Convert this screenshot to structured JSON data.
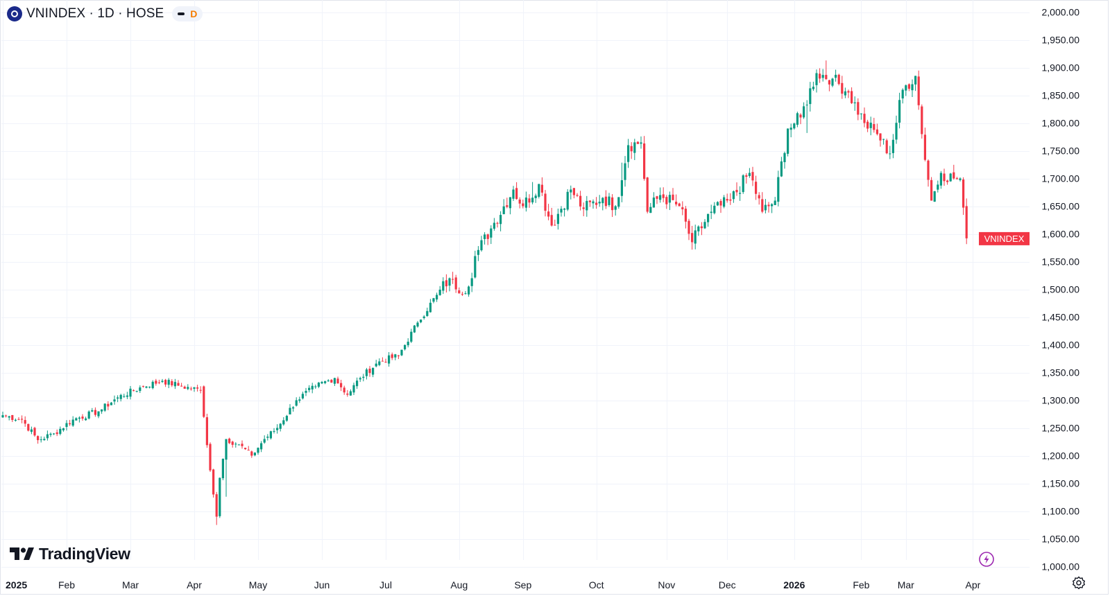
{
  "header": {
    "symbol_line": "VNINDEX · 1D · HOSE",
    "interval_flag": "D"
  },
  "branding": {
    "name": "TradingView"
  },
  "chart_data": {
    "type": "candlestick",
    "title": "VNINDEX · 1D · HOSE",
    "ylim": [
      1000,
      2000
    ],
    "y_ticks": [
      "2,000.00",
      "1,950.00",
      "1,900.00",
      "1,850.00",
      "1,800.00",
      "1,750.00",
      "1,700.00",
      "1,650.00",
      "1,600.00",
      "1,550.00",
      "1,500.00",
      "1,450.00",
      "1,400.00",
      "1,350.00",
      "1,300.00",
      "1,250.00",
      "1,200.00",
      "1,150.00",
      "1,100.00",
      "1,050.00",
      "1,000.00"
    ],
    "y_tick_values": [
      2000,
      1950,
      1900,
      1850,
      1800,
      1750,
      1700,
      1650,
      1600,
      1550,
      1500,
      1450,
      1400,
      1350,
      1300,
      1250,
      1200,
      1150,
      1100,
      1050,
      1000
    ],
    "x_ticks": [
      {
        "label": "2025",
        "bold": true
      },
      {
        "label": "Feb",
        "bold": false
      },
      {
        "label": "Mar",
        "bold": false
      },
      {
        "label": "Apr",
        "bold": false
      },
      {
        "label": "May",
        "bold": false
      },
      {
        "label": "Jun",
        "bold": false
      },
      {
        "label": "Jul",
        "bold": false
      },
      {
        "label": "Aug",
        "bold": false
      },
      {
        "label": "Sep",
        "bold": false
      },
      {
        "label": "Oct",
        "bold": false
      },
      {
        "label": "Nov",
        "bold": false
      },
      {
        "label": "Dec",
        "bold": false
      },
      {
        "label": "2026",
        "bold": true
      },
      {
        "label": "Feb",
        "bold": false
      },
      {
        "label": "Mar",
        "bold": false
      },
      {
        "label": "Apr",
        "bold": false
      }
    ],
    "x_tick_bar_index": [
      0,
      20,
      40,
      60,
      80,
      100,
      120,
      143,
      163,
      186,
      208,
      227,
      248,
      269,
      283,
      304
    ],
    "colors": {
      "up": "#089981",
      "down": "#f23645"
    },
    "last_price_label": "VNINDEX",
    "last_price_value": 1592,
    "anchors": [
      [
        0,
        1273
      ],
      [
        6,
        1265
      ],
      [
        11,
        1228
      ],
      [
        16,
        1240
      ],
      [
        22,
        1265
      ],
      [
        30,
        1280
      ],
      [
        36,
        1305
      ],
      [
        44,
        1325
      ],
      [
        50,
        1335
      ],
      [
        56,
        1325
      ],
      [
        62,
        1318
      ],
      [
        63,
        1270
      ],
      [
        66,
        1130
      ],
      [
        67,
        1090
      ],
      [
        68,
        1160
      ],
      [
        70,
        1230
      ],
      [
        74,
        1220
      ],
      [
        78,
        1200
      ],
      [
        82,
        1230
      ],
      [
        86,
        1250
      ],
      [
        92,
        1300
      ],
      [
        98,
        1325
      ],
      [
        104,
        1340
      ],
      [
        108,
        1310
      ],
      [
        112,
        1340
      ],
      [
        118,
        1370
      ],
      [
        124,
        1380
      ],
      [
        130,
        1440
      ],
      [
        136,
        1490
      ],
      [
        140,
        1520
      ],
      [
        142,
        1500
      ],
      [
        146,
        1505
      ],
      [
        148,
        1560
      ],
      [
        154,
        1620
      ],
      [
        160,
        1680
      ],
      [
        163,
        1650
      ],
      [
        168,
        1690
      ],
      [
        172,
        1615
      ],
      [
        178,
        1680
      ],
      [
        182,
        1645
      ],
      [
        188,
        1665
      ],
      [
        192,
        1650
      ],
      [
        196,
        1760
      ],
      [
        200,
        1765
      ],
      [
        202,
        1640
      ],
      [
        206,
        1670
      ],
      [
        212,
        1650
      ],
      [
        216,
        1585
      ],
      [
        222,
        1640
      ],
      [
        228,
        1660
      ],
      [
        234,
        1710
      ],
      [
        238,
        1640
      ],
      [
        242,
        1660
      ],
      [
        246,
        1790
      ],
      [
        250,
        1810
      ],
      [
        255,
        1890
      ],
      [
        260,
        1880
      ],
      [
        265,
        1855
      ],
      [
        270,
        1800
      ],
      [
        274,
        1780
      ],
      [
        278,
        1745
      ],
      [
        282,
        1860
      ],
      [
        286,
        1885
      ],
      [
        288,
        1780
      ],
      [
        291,
        1660
      ],
      [
        294,
        1710
      ],
      [
        298,
        1700
      ],
      [
        300,
        1700
      ],
      [
        302,
        1592
      ]
    ]
  }
}
